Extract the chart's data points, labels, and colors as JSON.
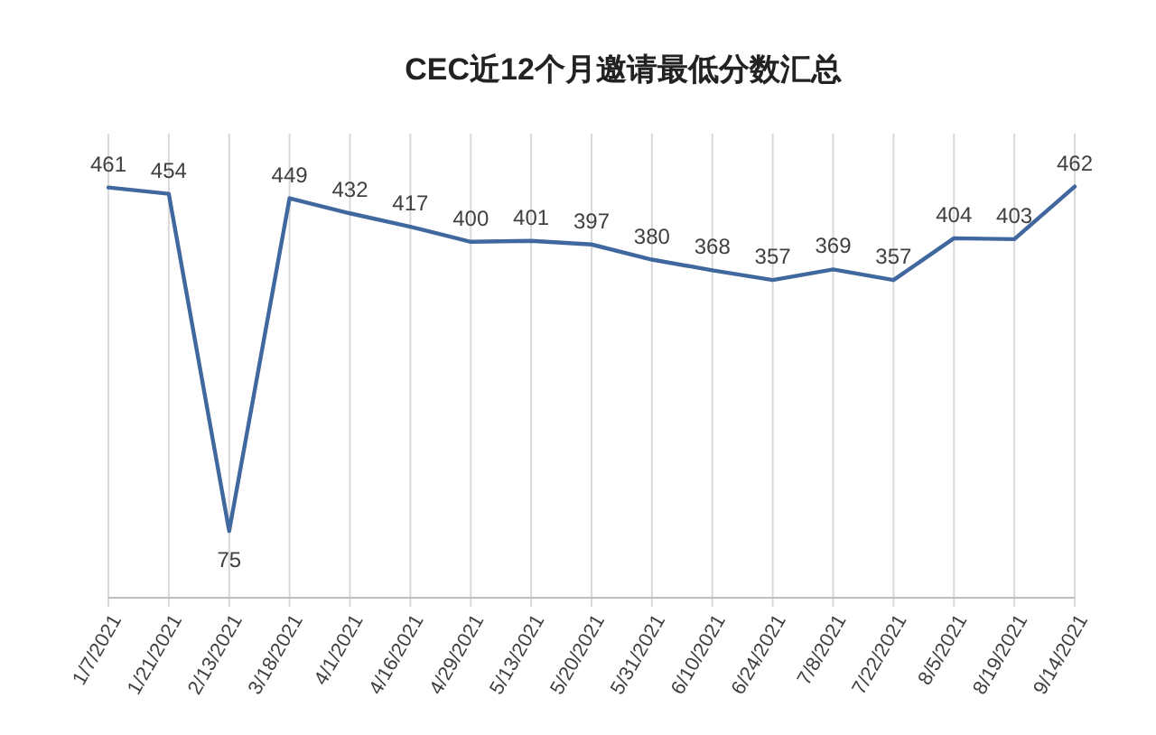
{
  "chart_data": {
    "type": "line",
    "title": "CEC近12个月邀请最低分数汇总",
    "categories": [
      "1/7/2021",
      "1/21/2021",
      "2/13/2021",
      "3/18/2021",
      "4/1/2021",
      "4/16/2021",
      "4/29/2021",
      "5/13/2021",
      "5/20/2021",
      "5/31/2021",
      "6/10/2021",
      "6/24/2021",
      "7/8/2021",
      "7/22/2021",
      "8/5/2021",
      "8/19/2021",
      "9/14/2021"
    ],
    "series": [
      {
        "color": "#41689e",
        "values": [
          461,
          454,
          75,
          449,
          432,
          417,
          400,
          401,
          397,
          380,
          368,
          357,
          369,
          357,
          404,
          403,
          462
        ]
      }
    ],
    "data_labels": true,
    "grid": "x",
    "marker": "none",
    "line_style": "solid"
  }
}
